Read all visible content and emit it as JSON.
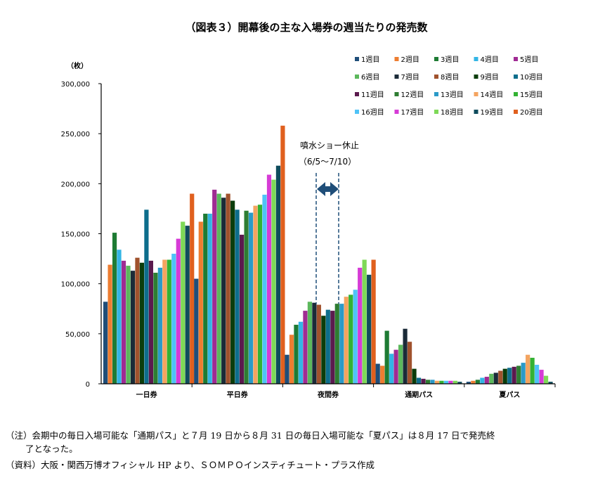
{
  "chart_data": {
    "type": "bar",
    "title": "（図表３）開幕後の主な入場券の週当たりの発売数",
    "unit_label": "（枚）",
    "categories": [
      "一日券",
      "平日券",
      "夜間券",
      "通期パス",
      "夏パス"
    ],
    "ylim": [
      0,
      300000
    ],
    "yticks": [
      "0",
      "50,000",
      "100,000",
      "150,000",
      "200,000",
      "250,000",
      "300,000"
    ],
    "grid": false,
    "legend_position": "top-right",
    "series": [
      {
        "name": "1週目",
        "color": "#1F4E79",
        "values": [
          82000,
          105000,
          29000,
          20000,
          2000
        ]
      },
      {
        "name": "2週目",
        "color": "#ED7D31",
        "values": [
          119000,
          162000,
          49000,
          18000,
          3000
        ]
      },
      {
        "name": "3週目",
        "color": "#1E7B34",
        "values": [
          151000,
          170000,
          59000,
          53000,
          4000
        ]
      },
      {
        "name": "4週目",
        "color": "#33B5E5",
        "values": [
          134000,
          170000,
          62000,
          30000,
          6000
        ]
      },
      {
        "name": "5週目",
        "color": "#A02B93",
        "values": [
          123000,
          194000,
          73000,
          34000,
          7000
        ]
      },
      {
        "name": "6週目",
        "color": "#5CB85C",
        "values": [
          118000,
          190000,
          82000,
          39000,
          10000
        ]
      },
      {
        "name": "7週目",
        "color": "#1B2B38",
        "values": [
          113000,
          186000,
          81000,
          55000,
          11000
        ]
      },
      {
        "name": "8週目",
        "color": "#A0522D",
        "values": [
          126000,
          190000,
          79000,
          42000,
          13000
        ]
      },
      {
        "name": "9週目",
        "color": "#0B3D0B",
        "values": [
          121000,
          183000,
          68000,
          15000,
          15000
        ]
      },
      {
        "name": "10週目",
        "color": "#0E6E8C",
        "values": [
          174000,
          174000,
          74000,
          6000,
          16000
        ]
      },
      {
        "name": "11週目",
        "color": "#5B1A4E",
        "values": [
          123000,
          149000,
          73000,
          5000,
          17000
        ]
      },
      {
        "name": "12週目",
        "color": "#2E7D32",
        "values": [
          111000,
          173000,
          80000,
          4000,
          18000
        ]
      },
      {
        "name": "13週目",
        "color": "#2B9AC8",
        "values": [
          116000,
          171000,
          80000,
          4000,
          21000
        ]
      },
      {
        "name": "14週目",
        "color": "#F4A460",
        "values": [
          124000,
          178000,
          87000,
          3000,
          29000
        ]
      },
      {
        "name": "15週目",
        "color": "#33B233",
        "values": [
          124000,
          179000,
          89000,
          3000,
          26000
        ]
      },
      {
        "name": "16週目",
        "color": "#4FC3F7",
        "values": [
          130000,
          189000,
          94000,
          3000,
          19000
        ]
      },
      {
        "name": "17週目",
        "color": "#D63BD6",
        "values": [
          145000,
          209000,
          116000,
          3000,
          14000
        ]
      },
      {
        "name": "18週目",
        "color": "#7ED957",
        "values": [
          162000,
          204000,
          124000,
          3000,
          8000
        ]
      },
      {
        "name": "19週目",
        "color": "#0F4C5C",
        "values": [
          158000,
          218000,
          109000,
          2000,
          2000
        ]
      },
      {
        "name": "20週目",
        "color": "#E0601E",
        "values": [
          190000,
          258000,
          124000,
          0,
          0
        ]
      }
    ],
    "annotation": {
      "line1": "噴水ショー休止",
      "line2": "（6/5～7/10）",
      "color": "#1F4E79"
    }
  },
  "notes": {
    "note1a": "（注）会期中の毎日入場可能な「通期パス」と７月 19 日から８月 31 日の毎日入場可能な「夏パス」は８月 17 日で発売終",
    "note1b": "了となった。",
    "note2": "（資料）大阪・関西万博オフィシャル HP より、ＳＯＭＰＯインスティチュート・プラス作成"
  }
}
